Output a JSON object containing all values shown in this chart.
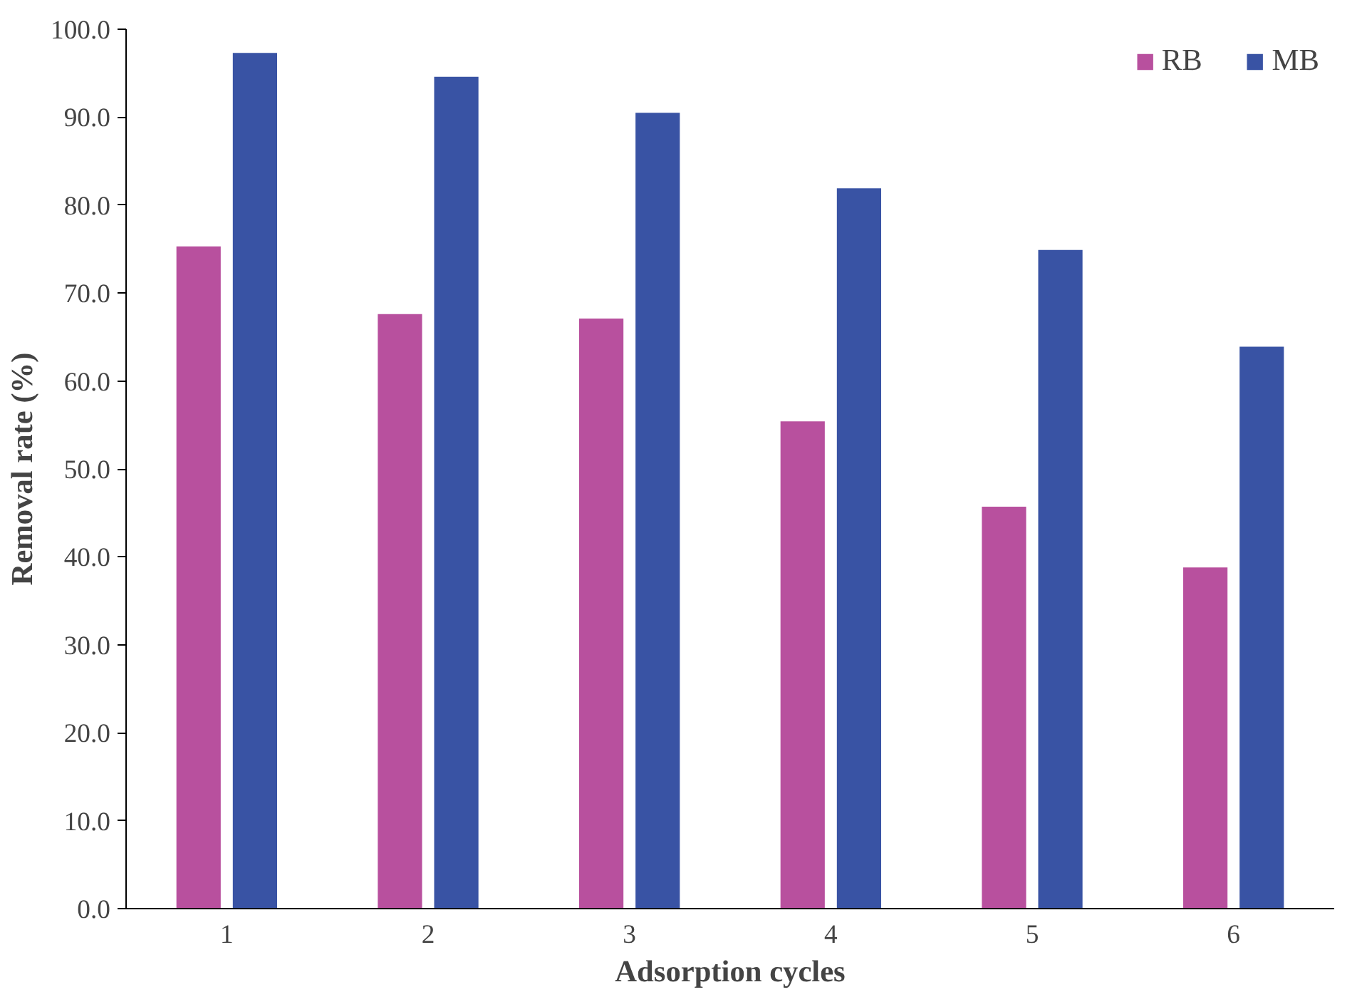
{
  "chart_data": {
    "type": "bar",
    "xlabel": "Adsorption cycles",
    "ylabel": "Removal rate (%)",
    "categories": [
      "1",
      "2",
      "3",
      "4",
      "5",
      "6"
    ],
    "series": [
      {
        "name": "RB",
        "color": "#b8509e",
        "values": [
          75.3,
          67.6,
          67.1,
          55.4,
          45.7,
          38.8
        ]
      },
      {
        "name": "MB",
        "color": "#3953a4",
        "values": [
          97.3,
          94.6,
          90.5,
          81.9,
          74.9,
          63.9
        ]
      }
    ],
    "ylim": [
      0,
      100
    ],
    "yticks": [
      {
        "value": 0,
        "label": "0.0"
      },
      {
        "value": 10,
        "label": "10.0"
      },
      {
        "value": 20,
        "label": "20.0"
      },
      {
        "value": 30,
        "label": "30.0"
      },
      {
        "value": 40,
        "label": "40.0"
      },
      {
        "value": 50,
        "label": "50.0"
      },
      {
        "value": 60,
        "label": "60.0"
      },
      {
        "value": 70,
        "label": "70.0"
      },
      {
        "value": 80,
        "label": "80.0"
      },
      {
        "value": 90,
        "label": "90.0"
      },
      {
        "value": 100,
        "label": "100.0"
      }
    ],
    "grid": false,
    "legend": "top right"
  }
}
